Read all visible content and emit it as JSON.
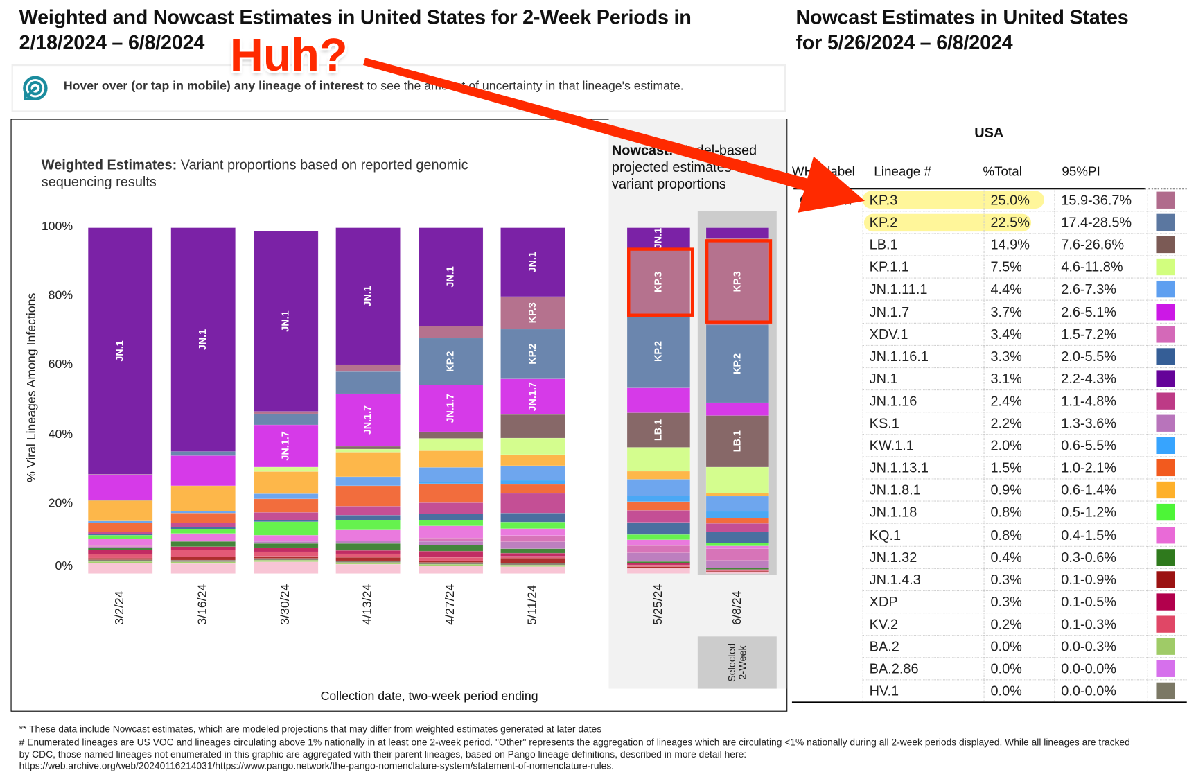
{
  "header": {
    "title_line1": "Weighted and Nowcast Estimates in United States for 2-Week Periods in",
    "title_line2": "2/18/2024 – 6/8/2024",
    "right_title_line1": "Nowcast Estimates in United States",
    "right_title_line2": "for 5/26/2024 – 6/8/2024"
  },
  "annotation": {
    "text": "Huh?",
    "color": "#ff2a00"
  },
  "hover_hint": {
    "icon": "target-cursor-icon",
    "bold": "Hover over (or tap in mobile) any lineage of interest",
    "rest": " to see the amount of uncertainty in that lineage's estimate."
  },
  "chart_data": {
    "type": "bar",
    "stacked": true,
    "subtitle_bold": "Weighted Estimates:",
    "subtitle_rest": " Variant proportions based on reported genomic sequencing results",
    "nowcast_bold": "Nowcast:",
    "nowcast_rest": " Model-based projected estimates of variant proportions",
    "ylabel": "% Viral Lineages Among Infections",
    "xlabel": "Collection date, two-week period ending",
    "ylim": [
      0,
      100
    ],
    "yticks": [
      "0%",
      "20%",
      "40%",
      "60%",
      "80%",
      "100%"
    ],
    "ytick_values": [
      0,
      20,
      40,
      60,
      80,
      100
    ],
    "selected_label": "Selected 2-Week",
    "lineage_order": [
      "Other",
      "BA.2",
      "HV.1",
      "JN.1.4.3",
      "KV.2",
      "XDP",
      "JN.1.32",
      "KS.1",
      "XDV.1",
      "KQ.1",
      "JN.1.18",
      "JN.1.16.1",
      "JN.1.16",
      "JN.1.13.1",
      "KW.1.1",
      "JN.1.11.1",
      "JN.1.8.1",
      "KP.1.1",
      "LB.1",
      "JN.1.7",
      "KP.2",
      "KP.3",
      "JN.1"
    ],
    "colors": {
      "JN.1": "#7b22a6",
      "KP.3": "#b5728e",
      "KP.2": "#6b86ae",
      "JN.1.7": "#d63ae8",
      "LB.1": "#876868",
      "KP.1.1": "#d4fd8e",
      "JN.1.8.1": "#fdb74a",
      "JN.1.11.1": "#6ea6ee",
      "JN.1.13.1": "#f26d3d",
      "JN.1.16": "#c44f95",
      "JN.1.16.1": "#4a6fa0",
      "JN.1.18": "#66f24e",
      "KQ.1": "#ea7ade",
      "XDV.1": "#d774b8",
      "KS.1": "#bd7fbf",
      "JN.1.32": "#45853a",
      "KW.1.1": "#4aa8f5",
      "XDP": "#c12c63",
      "KV.2": "#e35a77",
      "JN.1.4.3": "#ad2e2e",
      "BA.2": "#a4d06e",
      "HV.1": "#888070",
      "BA.2.86": "#d670ec",
      "Other": "#f8c5d5"
    },
    "bars": [
      {
        "date": "3/2/24",
        "nowcast": false,
        "labels": [
          "JN.1"
        ],
        "values": {
          "Other": 3,
          "BA.2": 0.5,
          "HV.1": 0.5,
          "JN.1.4.3": 0.5,
          "KV.2": 1.1,
          "XDP": 1.2,
          "JN.1.32": 0.7,
          "KS.1": 0.3,
          "XDV.1": 0.3,
          "KQ.1": 2.0,
          "JN.1.18": 1.0,
          "JN.1.16.1": 0.3,
          "JN.1.16": 0.6,
          "JN.1.13.1": 2.7,
          "KW.1.1": 0,
          "JN.1.11.1": 0.5,
          "JN.1.8.1": 5.9,
          "KP.1.1": 0,
          "LB.1": 0.1,
          "JN.1.7": 7.3,
          "KP.2": 0.1,
          "KP.3": 0.1,
          "JN.1": 71.3
        }
      },
      {
        "date": "3/16/24",
        "nowcast": false,
        "labels": [
          "JN.1"
        ],
        "values": {
          "Other": 2.9,
          "BA.2": 0.5,
          "HV.1": 0.5,
          "JN.1.4.3": 0.9,
          "KV.2": 2.0,
          "XDP": 1.0,
          "JN.1.32": 1.5,
          "KS.1": 0,
          "XDV.1": 0,
          "KQ.1": 2.3,
          "JN.1.18": 1.3,
          "JN.1.16.1": 0.5,
          "JN.1.16": 1.3,
          "JN.1.13.1": 2.8,
          "KW.1.1": 0,
          "JN.1.11.1": 0.5,
          "JN.1.8.1": 7.4,
          "KP.1.1": 0,
          "LB.1": 0,
          "JN.1.7": 8.7,
          "KP.2": 1.2,
          "KP.3": 0,
          "JN.1": 64.7
        }
      },
      {
        "date": "3/30/24",
        "nowcast": false,
        "labels": [
          "JN.1",
          "JN.1.7"
        ],
        "values": {
          "Other": 3.4,
          "BA.2": 0.5,
          "HV.1": 0.5,
          "JN.1.4.3": 0.6,
          "KV.2": 1.3,
          "XDP": 1.2,
          "JN.1.32": 1.2,
          "KS.1": 0.6,
          "XDV.1": 0,
          "KQ.1": 1.8,
          "JN.1.18": 3.9,
          "JN.1.16.1": 0.5,
          "JN.1.16": 2.2,
          "JN.1.13.1": 3.9,
          "KW.1.1": 0,
          "JN.1.11.1": 1.5,
          "JN.1.8.1": 6.4,
          "KP.1.1": 1.3,
          "LB.1": 0,
          "JN.1.7": 12.2,
          "KP.2": 3.2,
          "KP.3": 0.7,
          "JN.1": 52.1
        }
      },
      {
        "date": "4/13/24",
        "nowcast": false,
        "labels": [
          "JN.1",
          "JN.1.7"
        ],
        "values": {
          "Other": 2.7,
          "BA.2": 0.5,
          "HV.1": 0.5,
          "JN.1.4.3": 1.0,
          "KV.2": 1.0,
          "XDP": 1.0,
          "JN.1.32": 2.0,
          "KS.1": 0.7,
          "XDV.1": 0,
          "KQ.1": 3.2,
          "JN.1.18": 2.8,
          "JN.1.16.1": 1.5,
          "JN.1.16": 2.6,
          "JN.1.13.1": 5.9,
          "KW.1.1": 0,
          "JN.1.11.1": 2.6,
          "JN.1.8.1": 7.1,
          "KP.1.1": 0.9,
          "LB.1": 0.8,
          "JN.1.7": 15.2,
          "KP.2": 6.4,
          "KP.3": 2.0,
          "JN.1": 39.6
        }
      },
      {
        "date": "4/27/24",
        "nowcast": false,
        "labels": [
          "JN.1",
          "KP.2",
          "JN.1.7"
        ],
        "values": {
          "Other": 2.2,
          "BA.2": 0.5,
          "HV.1": 0.5,
          "JN.1.4.3": 0.5,
          "KV.2": 1.0,
          "XDP": 1.8,
          "JN.1.32": 1.7,
          "KS.1": 1.1,
          "XDV.1": 1.0,
          "KQ.1": 3.5,
          "JN.1.18": 1.6,
          "JN.1.16.1": 1.9,
          "JN.1.16": 3.2,
          "JN.1.13.1": 5.5,
          "KW.1.1": 0.5,
          "JN.1.11.1": 4.2,
          "JN.1.8.1": 4.8,
          "KP.1.1": 3.6,
          "LB.1": 1.9,
          "JN.1.7": 13.5,
          "KP.2": 13.6,
          "KP.3": 3.5,
          "JN.1": 28.4
        }
      },
      {
        "date": "5/11/24",
        "nowcast": false,
        "labels": [
          "JN.1",
          "KP.3",
          "KP.2",
          "JN.1.7"
        ],
        "values": {
          "Other": 2.0,
          "BA.2": 0.5,
          "HV.1": 0.5,
          "JN.1.4.3": 1.5,
          "KV.2": 0.5,
          "XDP": 0.9,
          "JN.1.32": 1.3,
          "KS.1": 2.0,
          "XDV.1": 1.8,
          "KQ.1": 2.0,
          "JN.1.18": 1.9,
          "JN.1.16.1": 2.6,
          "JN.1.16": 5.7,
          "JN.1.13.1": 2.6,
          "KW.1.1": 1.2,
          "JN.1.11.1": 4.2,
          "JN.1.8.1": 3.2,
          "KP.1.1": 4.8,
          "LB.1": 6.8,
          "JN.1.7": 10.3,
          "KP.2": 14.4,
          "KP.3": 9.4,
          "JN.1": 19.9
        }
      },
      {
        "date": "5/25/24",
        "nowcast": true,
        "labels": [
          "JN.1",
          "KP.3",
          "KP.2",
          "LB.1"
        ],
        "values": {
          "Other": 1.5,
          "BA.2": 0,
          "HV.1": 0,
          "JN.1.4.3": 0.5,
          "KV.2": 0.5,
          "XDP": 0.5,
          "JN.1.32": 0.5,
          "KS.1": 2.5,
          "XDV.1": 2.1,
          "KQ.1": 1.7,
          "JN.1.18": 1.5,
          "JN.1.16.1": 3.5,
          "JN.1.16": 3.5,
          "JN.1.13.1": 2.5,
          "KW.1.1": 1.7,
          "JN.1.11.1": 4.8,
          "JN.1.8.1": 2.3,
          "KP.1.1": 6.9,
          "LB.1": 10.0,
          "JN.1.7": 7.2,
          "KP.2": 21.1,
          "KP.3": 19.0,
          "JN.1": 6.2
        }
      },
      {
        "date": "6/8/24",
        "nowcast": true,
        "selected": true,
        "labels": [
          "KP.3",
          "KP.2",
          "LB.1"
        ],
        "values": {
          "Other": 0.4,
          "BA.2": 0,
          "HV.1": 0,
          "JN.1.4.3": 0.3,
          "KV.2": 0.2,
          "XDP": 0.3,
          "JN.1.32": 0.4,
          "KS.1": 2.2,
          "XDV.1": 3.4,
          "KQ.1": 0.8,
          "JN.1.18": 0.8,
          "JN.1.16.1": 3.3,
          "JN.1.16": 2.4,
          "JN.1.13.1": 1.5,
          "KW.1.1": 2.0,
          "JN.1.11.1": 4.4,
          "JN.1.8.1": 0.9,
          "KP.1.1": 7.5,
          "LB.1": 14.9,
          "JN.1.7": 3.7,
          "KP.2": 22.5,
          "KP.3": 25.0,
          "JN.1": 3.1
        }
      }
    ],
    "highlighted_boxes": [
      "KP.3 in 5/25/24",
      "KP.3 in 6/8/24"
    ]
  },
  "table": {
    "region": "USA",
    "headers": [
      "WHO label",
      "Lineage #",
      "%Total",
      "95%PI"
    ],
    "rows": [
      {
        "who": "Omicron",
        "lineage": "KP.3",
        "total": "25.0%",
        "pi": "15.9-36.7%",
        "color": "#b06b8c",
        "highlight": true
      },
      {
        "who": "",
        "lineage": "KP.2",
        "total": "22.5%",
        "pi": "17.4-28.5%",
        "color": "#5b77a0",
        "highlight": true
      },
      {
        "who": "",
        "lineage": "LB.1",
        "total": "14.9%",
        "pi": "7.6-26.6%",
        "color": "#7b5a55"
      },
      {
        "who": "",
        "lineage": "KP.1.1",
        "total": "7.5%",
        "pi": "4.6-11.8%",
        "color": "#d2fe7e"
      },
      {
        "who": "",
        "lineage": "JN.1.11.1",
        "total": "4.4%",
        "pi": "2.6-7.3%",
        "color": "#5e9ff0"
      },
      {
        "who": "",
        "lineage": "JN.1.7",
        "total": "3.7%",
        "pi": "2.6-5.1%",
        "color": "#cc18e6"
      },
      {
        "who": "",
        "lineage": "XDV.1",
        "total": "3.4%",
        "pi": "1.5-7.2%",
        "color": "#d469b8"
      },
      {
        "who": "",
        "lineage": "JN.1.16.1",
        "total": "3.3%",
        "pi": "2.0-5.5%",
        "color": "#355e96"
      },
      {
        "who": "",
        "lineage": "JN.1",
        "total": "3.1%",
        "pi": "2.2-4.3%",
        "color": "#650399"
      },
      {
        "who": "",
        "lineage": "JN.1.16",
        "total": "2.4%",
        "pi": "1.1-4.8%",
        "color": "#bd3a86"
      },
      {
        "who": "",
        "lineage": "KS.1",
        "total": "2.2%",
        "pi": "1.3-3.6%",
        "color": "#b874bb"
      },
      {
        "who": "",
        "lineage": "KW.1.1",
        "total": "2.0%",
        "pi": "0.6-5.5%",
        "color": "#37a4fe"
      },
      {
        "who": "",
        "lineage": "JN.1.13.1",
        "total": "1.5%",
        "pi": "1.0-2.1%",
        "color": "#f25a1e"
      },
      {
        "who": "",
        "lineage": "JN.1.8.1",
        "total": "0.9%",
        "pi": "0.6-1.4%",
        "color": "#feb02a"
      },
      {
        "who": "",
        "lineage": "JN.1.18",
        "total": "0.8%",
        "pi": "0.5-1.2%",
        "color": "#4df537"
      },
      {
        "who": "",
        "lineage": "KQ.1",
        "total": "0.8%",
        "pi": "0.4-1.5%",
        "color": "#e96ad7"
      },
      {
        "who": "",
        "lineage": "JN.1.32",
        "total": "0.4%",
        "pi": "0.3-0.6%",
        "color": "#2f7a1d"
      },
      {
        "who": "",
        "lineage": "JN.1.4.3",
        "total": "0.3%",
        "pi": "0.1-0.9%",
        "color": "#9b1212"
      },
      {
        "who": "",
        "lineage": "XDP",
        "total": "0.3%",
        "pi": "0.1-0.5%",
        "color": "#b2004c"
      },
      {
        "who": "",
        "lineage": "KV.2",
        "total": "0.2%",
        "pi": "0.1-0.3%",
        "color": "#e04766"
      },
      {
        "who": "",
        "lineage": "BA.2",
        "total": "0.0%",
        "pi": "0.0-0.3%",
        "color": "#9fcb67"
      },
      {
        "who": "",
        "lineage": "BA.2.86",
        "total": "0.0%",
        "pi": "0.0-0.0%",
        "color": "#d670ec"
      },
      {
        "who": "",
        "lineage": "HV.1",
        "total": "0.0%",
        "pi": "0.0-0.0%",
        "color": "#7b7865"
      }
    ]
  },
  "footnotes": [
    "**     These data include Nowcast estimates, which are modeled projections that may differ from weighted estimates generated at later dates",
    "# Enumerated lineages are US VOC and lineages circulating above 1% nationally in at least one 2-week period. \"Other\" represents the aggregation of lineages which are circulating <1% nationally during all 2-week periods displayed.  While all lineages are tracked",
    "by CDC, those named lineages not enumerated in this graphic are aggregated with their parent lineages, based on Pango lineage definitions, described in more detail here:",
    "https://web.archive.org/web/20240116214031/https://www.pango.network/the-pango-nomenclature-system/statement-of-nomenclature-rules."
  ]
}
